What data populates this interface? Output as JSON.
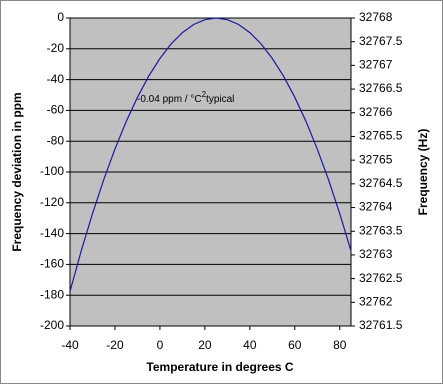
{
  "chart_data": {
    "type": "line",
    "x_label": "Temperature in degrees C",
    "y_label": "Frequency deviation in ppm",
    "y2_label": "Frequency (Hz)",
    "annotation": {
      "text": "-0.04 ppm / °C",
      "superscript": "2",
      "suffix": "typical"
    },
    "x": [
      -40,
      -35,
      -30,
      -25,
      -20,
      -15,
      -10,
      -5,
      0,
      5,
      10,
      15,
      20,
      25,
      30,
      35,
      40,
      45,
      50,
      55,
      60,
      65,
      70,
      75,
      80,
      85
    ],
    "series": [
      {
        "color": "#1a1aa0",
        "values": [
          -177.5,
          -151.2,
          -127.1,
          -105,
          -85.1,
          -67.2,
          -51.5,
          -37.8,
          -26.3,
          -16.8,
          -9.5,
          -4.2,
          -1.1,
          0,
          -1.1,
          -4.2,
          -9.5,
          -16.8,
          -26.3,
          -37.8,
          -51.5,
          -67.2,
          -85.1,
          -105,
          -127.1,
          -151.2
        ]
      }
    ],
    "xlim": [
      -40,
      85
    ],
    "xticks": [
      -40,
      -20,
      0,
      20,
      40,
      60,
      80
    ],
    "ylim": [
      -200,
      0
    ],
    "yticks": [
      0,
      -20,
      -40,
      -60,
      -80,
      -100,
      -120,
      -140,
      -160,
      -180,
      -200
    ],
    "y2lim": [
      32761.5,
      32768
    ],
    "y2ticks": [
      32768,
      32767.5,
      32767,
      32766.5,
      32766,
      32765.5,
      32765,
      32764.5,
      32764,
      32763.5,
      32763,
      32762.5,
      32762,
      32761.5
    ],
    "grid": true,
    "plot_background": "#c0c0c0"
  }
}
